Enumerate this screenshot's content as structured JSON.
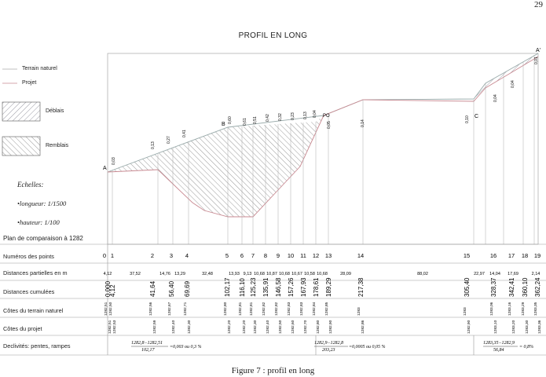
{
  "page_number": "29",
  "title": "PROFIL EN LONG",
  "caption": "Figure 7 : profil en long",
  "legend": {
    "terrain": "Terrain naturel",
    "projet": "Projet",
    "deblais": "Déblais",
    "remblais": "Remblais"
  },
  "scales": {
    "heading": "Echelles:",
    "longueur_label": "•longueur:",
    "longueur_value": "1/1500",
    "hauteur_label": "•hauteur:",
    "hauteur_value": "1/100"
  },
  "plan_comparaison": "Plan de comparaison à 1282",
  "rows": {
    "numeros": "Numéros des points",
    "distances_partielles": "Distances partielles en m",
    "distances_cumulees": "Distances cumulées",
    "cotes_terrain": "Côtes du terrain naturel",
    "cotes_projet": "Côtes du projet",
    "declivites": "Declivités: pentes, rampes"
  },
  "point_labels": [
    "0",
    "1",
    "2",
    "3",
    "4",
    "5",
    "6",
    "7",
    "8",
    "9",
    "10",
    "11",
    "12",
    "13",
    "14",
    "15",
    "16",
    "17",
    "18",
    "19"
  ],
  "partial_distances": [
    "4,12",
    "37,52",
    "14,76",
    "13,29",
    "32,48",
    "13,93",
    "9,13",
    "10,68",
    "10,87",
    "10,68",
    "10,67",
    "10,58",
    "10,68",
    "28,09",
    "88,02",
    "22,97",
    "14,04",
    "17,69",
    "2,14"
  ],
  "cumulative_distances": [
    "0,000",
    "4,12",
    "41,64",
    "56,40",
    "69,69",
    "102,17",
    "116,10",
    "125,23",
    "135,91",
    "146,58",
    "157,26",
    "167,93",
    "178,61",
    "189,29",
    "217,38",
    "305,40",
    "328,37",
    "342,41",
    "360,10",
    "362,24"
  ],
  "cotes_terrain": [
    "1282,51",
    "1282,50",
    "1282,56",
    "1282,67",
    "1282,71",
    "1282,80",
    "1282,81",
    "1282,81",
    "1282,82",
    "1282,82",
    "1282,83",
    "1282,83",
    "1282,84",
    "1282,85",
    "1283",
    "1283",
    "1283,06",
    "1283,16",
    "1283,29",
    "1283,35"
  ],
  "cotes_projet": [
    "1282,51",
    "1282,53",
    "1282,59",
    "1282,40",
    "1282,30",
    "1282,20",
    "1282,20",
    "1282,30",
    "1282,40",
    "1282,50",
    "1282,60",
    "1282,70",
    "1282,80",
    "1282,90",
    "1282,86",
    "1282,90",
    "1283,10",
    "1283,20",
    "1283,30",
    "1283,36"
  ],
  "slopes": [
    {
      "formula_num": "1282,8−1282,51",
      "formula_den": "102,17",
      "result": "=0,003 ou 0,3 %"
    },
    {
      "formula_num": "1282,9−1282,8",
      "formula_den": "203,23",
      "result": "=0,0005 ou 0,05 %"
    },
    {
      "formula_num": "1283,35−1282,9",
      "formula_den": "56,84",
      "result": "= 0,8%"
    }
  ],
  "marker_labels": {
    "A": "A",
    "B": "B",
    "PO": "PO",
    "C": "C",
    "A_prime": "A'"
  },
  "depth_labels": [
    "0,03",
    "0,13",
    "0,27",
    "0,41",
    "0,60",
    "0,61",
    "0,51",
    "0,42",
    "0,32",
    "0,23",
    "0,13",
    "0,04",
    "0,05",
    "0,14",
    "0,10",
    "0,04",
    "0,04",
    "0,01"
  ],
  "colors": {
    "terrain": "#aaaaaa",
    "projet": "#c98a92",
    "hatch_deblais": "#555577",
    "hatch_remblais": "#555555",
    "grid": "#888888"
  }
}
